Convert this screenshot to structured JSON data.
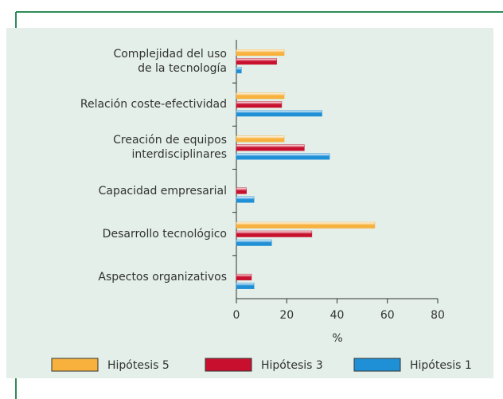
{
  "chart_data": {
    "type": "hbar",
    "categories": [
      "Complejidad del uso\nde la tecnología",
      "Relación coste-efectividad",
      "Creación de equipos\ninterdisciplinares",
      "Capacidad empresarial",
      "Desarrollo tecnológico",
      "Aspectos organizativos"
    ],
    "series": [
      {
        "name": "Hipótesis 5",
        "color": "#f7b13c",
        "values": [
          19,
          19,
          19,
          0,
          55,
          0
        ]
      },
      {
        "name": "Hipótesis 3",
        "color": "#c8102e",
        "values": [
          16,
          18,
          27,
          4,
          30,
          6
        ]
      },
      {
        "name": "Hipótesis 1",
        "color": "#1f8fd6",
        "values": [
          2,
          34,
          37,
          7,
          14,
          7
        ]
      }
    ],
    "xlabel": "%",
    "xlim": [
      0,
      80
    ],
    "xticks": [
      0,
      20,
      40,
      60,
      80
    ],
    "grid": false,
    "legend": "bottom"
  }
}
